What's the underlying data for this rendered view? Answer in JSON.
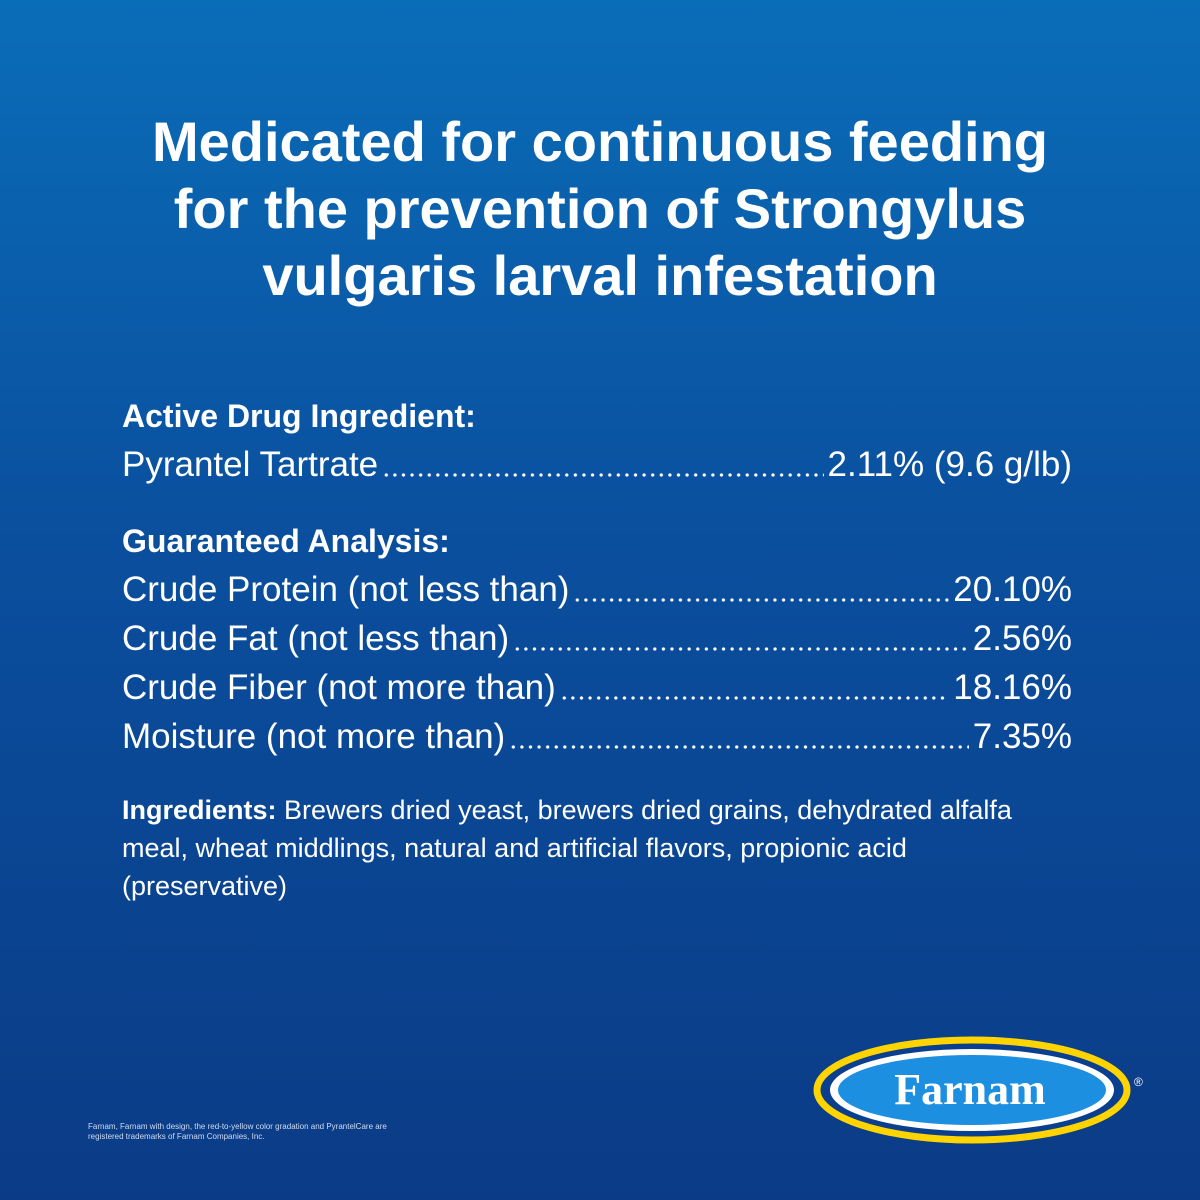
{
  "title_lines": [
    "Medicated for continuous feeding",
    "for the prevention of Strongylus",
    "vulgaris larval infestation"
  ],
  "active": {
    "heading": "Active Drug Ingredient:",
    "rows": [
      {
        "name": "Pyrantel Tartrate",
        "value": "2.11% (9.6 g/lb)"
      }
    ]
  },
  "analysis": {
    "heading": "Guaranteed Analysis:",
    "rows": [
      {
        "name": "Crude Protein (not less than)",
        "value": "20.10%"
      },
      {
        "name": "Crude Fat (not less than)",
        "value": "2.56%"
      },
      {
        "name": "Crude Fiber (not more than)",
        "value": "18.16%"
      },
      {
        "name": "Moisture (not more than)",
        "value": "7.35%"
      }
    ]
  },
  "ingredients": {
    "label": "Ingredients:",
    "text": "Brewers dried yeast, brewers dried grains, dehydrated alfalfa meal, wheat middlings, natural and artificial flavors, propionic acid (preservative)"
  },
  "logo": {
    "text": "Farnam",
    "mark": "®"
  },
  "footnote": "Farnam, Farnam with design, the red-to-yellow color gradation and PyrantelCare are registered trademarks of Farnam Companies, Inc."
}
